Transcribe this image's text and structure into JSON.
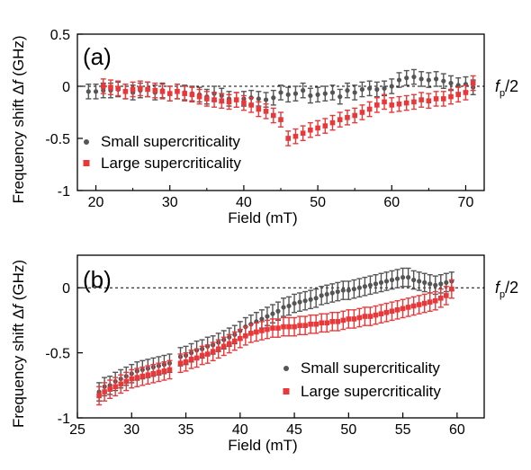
{
  "colors": {
    "small": "#555555",
    "large": "#e8383a",
    "axis": "#000000"
  },
  "ylabel_parts": {
    "pre": "Frequency shift ",
    "delta": "Δ",
    "var": "f",
    "unit": " (GHz)"
  },
  "ref_label": {
    "var": "f",
    "sub": "p",
    "rest": "/2"
  },
  "chart_data": [
    {
      "type": "scatter",
      "panel_label": "(a)",
      "xlabel": "Field (mT)",
      "xlim": [
        17.5,
        72.5
      ],
      "ylim": [
        -1,
        0.5
      ],
      "xticks": [
        20,
        30,
        40,
        50,
        60,
        70
      ],
      "yticks": [
        0.5,
        0,
        -0.5,
        -1
      ],
      "yticklabels": [
        "0.5",
        "0",
        "-0.5",
        "-1"
      ],
      "reference_line": 0,
      "legend": "bottom-left",
      "series": [
        {
          "name": "Small supercriticality",
          "marker": "circle",
          "error": 0.07,
          "x": [
            19,
            20,
            21,
            22,
            23,
            24,
            25,
            26,
            27,
            28,
            29,
            30,
            31,
            32,
            33,
            34,
            35,
            36,
            37,
            38,
            39,
            40,
            41,
            42,
            43,
            44,
            45,
            46,
            47,
            48,
            49,
            50,
            51,
            52,
            53,
            54,
            55,
            56,
            57,
            58,
            59,
            60,
            61,
            62,
            63,
            64,
            65,
            66,
            67,
            68,
            69,
            70,
            71
          ],
          "y": [
            -0.05,
            -0.05,
            -0.04,
            -0.04,
            -0.03,
            -0.05,
            -0.06,
            -0.04,
            -0.03,
            -0.06,
            -0.04,
            -0.07,
            -0.05,
            -0.06,
            -0.07,
            -0.08,
            -0.1,
            -0.07,
            -0.09,
            -0.12,
            -0.13,
            -0.12,
            -0.11,
            -0.12,
            -0.13,
            -0.11,
            -0.06,
            -0.08,
            -0.07,
            -0.04,
            -0.09,
            -0.08,
            -0.07,
            -0.06,
            -0.1,
            -0.04,
            -0.06,
            -0.03,
            -0.02,
            -0.03,
            -0.02,
            0,
            0.06,
            0.08,
            0.09,
            0.07,
            0.06,
            0.07,
            0.05,
            0.03,
            0.01,
            0.02,
            -0.01
          ]
        },
        {
          "name": "Large supercriticality",
          "marker": "square",
          "error": 0.07,
          "x": [
            21,
            22,
            23,
            24,
            25,
            26,
            27,
            28,
            29,
            30,
            31,
            32,
            33,
            34,
            35,
            36,
            37,
            38,
            39,
            40,
            41,
            42,
            43,
            44,
            45,
            46,
            47,
            48,
            49,
            50,
            51,
            52,
            53,
            54,
            55,
            56,
            57,
            58,
            59,
            60,
            61,
            62,
            63,
            64,
            65,
            66,
            67,
            68,
            69,
            70,
            71
          ],
          "y": [
            0,
            -0.01,
            -0.02,
            -0.05,
            -0.03,
            -0.02,
            -0.03,
            -0.04,
            -0.05,
            -0.07,
            -0.05,
            -0.07,
            -0.08,
            -0.1,
            -0.12,
            -0.13,
            -0.14,
            -0.15,
            -0.13,
            -0.16,
            -0.18,
            -0.22,
            -0.24,
            -0.28,
            -0.32,
            -0.5,
            -0.48,
            -0.45,
            -0.42,
            -0.4,
            -0.38,
            -0.35,
            -0.32,
            -0.3,
            -0.28,
            -0.25,
            -0.22,
            -0.18,
            -0.15,
            -0.18,
            -0.17,
            -0.16,
            -0.15,
            -0.13,
            -0.14,
            -0.12,
            -0.12,
            -0.1,
            -0.08,
            -0.06,
            0.03
          ]
        }
      ]
    },
    {
      "type": "scatter",
      "panel_label": "(b)",
      "xlabel": "Field (mT)",
      "xlim": [
        25,
        62.5
      ],
      "ylim": [
        -1,
        0.25
      ],
      "xticks": [
        25,
        30,
        35,
        40,
        45,
        50,
        55,
        60
      ],
      "yticks": [
        0,
        -0.5,
        -1
      ],
      "yticklabels": [
        "0",
        "-0.5",
        "-1"
      ],
      "reference_line": 0,
      "legend": "bottom-right",
      "series": [
        {
          "name": "Small supercriticality",
          "marker": "circle",
          "error": 0.07,
          "x": [
            27,
            27.5,
            28,
            28.5,
            29,
            29.5,
            30,
            30.5,
            31,
            31.5,
            32,
            32.5,
            33,
            33.5,
            34.5,
            35,
            35.5,
            36,
            36.5,
            37,
            37.5,
            38,
            38.5,
            39,
            39.5,
            40,
            40.5,
            41,
            41.5,
            42,
            42.5,
            43,
            43.5,
            44,
            44.5,
            45,
            45.5,
            46,
            46.5,
            47,
            47.5,
            48,
            48.5,
            49,
            49.5,
            50,
            50.5,
            51,
            51.5,
            52,
            52.5,
            53,
            53.5,
            54,
            54.5,
            55,
            55.5,
            56,
            56.5,
            57,
            57.5,
            58,
            58.5,
            59,
            59.5
          ],
          "y": [
            -0.8,
            -0.76,
            -0.75,
            -0.72,
            -0.7,
            -0.68,
            -0.66,
            -0.64,
            -0.63,
            -0.62,
            -0.61,
            -0.6,
            -0.59,
            -0.58,
            -0.53,
            -0.52,
            -0.5,
            -0.48,
            -0.47,
            -0.45,
            -0.44,
            -0.42,
            -0.4,
            -0.38,
            -0.36,
            -0.33,
            -0.3,
            -0.28,
            -0.26,
            -0.24,
            -0.22,
            -0.2,
            -0.18,
            -0.15,
            -0.14,
            -0.12,
            -0.11,
            -0.1,
            -0.09,
            -0.08,
            -0.06,
            -0.05,
            -0.04,
            -0.03,
            -0.02,
            -0.02,
            -0.01,
            0,
            0.01,
            0.02,
            0.03,
            0.04,
            0.05,
            0.06,
            0.07,
            0.08,
            0.08,
            0.06,
            0.05,
            0.04,
            0.03,
            0.02,
            0.03,
            0.04,
            0.05
          ]
        },
        {
          "name": "Large supercriticality",
          "marker": "square",
          "error": 0.07,
          "x": [
            27,
            27.5,
            28,
            28.5,
            29,
            29.5,
            30,
            30.5,
            31,
            31.5,
            32,
            32.5,
            33,
            33.5,
            34.5,
            35,
            35.5,
            36,
            36.5,
            37,
            37.5,
            38,
            38.5,
            39,
            39.5,
            40,
            40.5,
            41,
            41.5,
            42,
            42.5,
            43,
            43.5,
            44,
            44.5,
            45,
            45.5,
            46,
            46.5,
            47,
            47.5,
            48,
            48.5,
            49,
            49.5,
            50,
            50.5,
            51,
            51.5,
            52,
            52.5,
            53,
            53.5,
            54,
            54.5,
            55,
            55.5,
            56,
            56.5,
            57,
            57.5,
            58,
            58.5,
            59,
            59.5
          ],
          "y": [
            -0.83,
            -0.8,
            -0.78,
            -0.76,
            -0.74,
            -0.72,
            -0.7,
            -0.69,
            -0.68,
            -0.67,
            -0.66,
            -0.65,
            -0.64,
            -0.63,
            -0.58,
            -0.57,
            -0.55,
            -0.54,
            -0.52,
            -0.51,
            -0.49,
            -0.47,
            -0.45,
            -0.43,
            -0.41,
            -0.39,
            -0.37,
            -0.35,
            -0.34,
            -0.33,
            -0.32,
            -0.31,
            -0.31,
            -0.3,
            -0.3,
            -0.3,
            -0.29,
            -0.29,
            -0.28,
            -0.28,
            -0.27,
            -0.27,
            -0.26,
            -0.26,
            -0.25,
            -0.24,
            -0.24,
            -0.23,
            -0.22,
            -0.22,
            -0.21,
            -0.2,
            -0.19,
            -0.18,
            -0.17,
            -0.16,
            -0.15,
            -0.14,
            -0.13,
            -0.12,
            -0.11,
            -0.1,
            -0.08,
            -0.06,
            -0.01
          ]
        }
      ]
    }
  ]
}
